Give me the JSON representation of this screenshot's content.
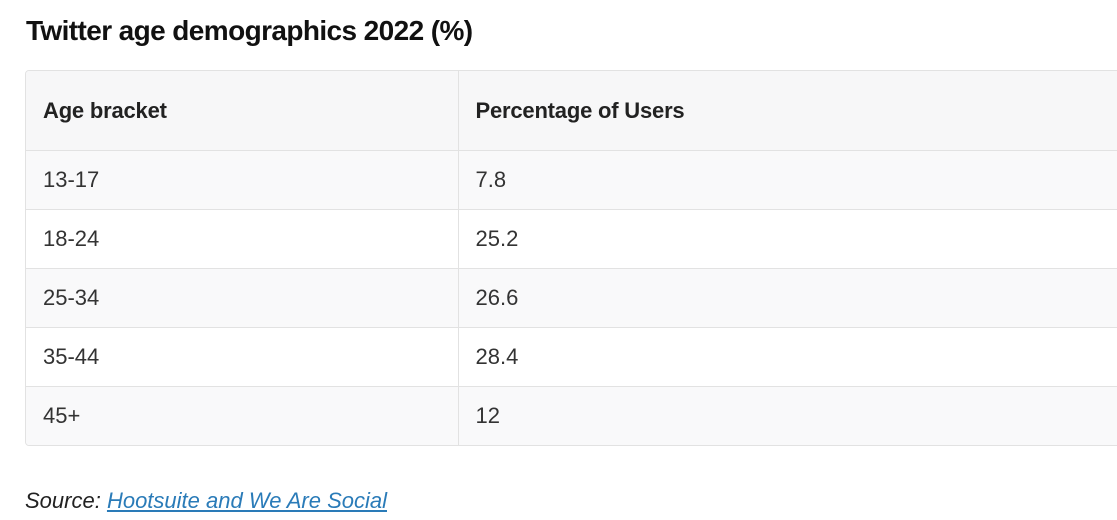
{
  "title": "Twitter age demographics 2022 (%)",
  "table": {
    "headers": [
      "Age bracket",
      "Percentage of Users"
    ],
    "rows": [
      [
        "13-17",
        "7.8"
      ],
      [
        "18-24",
        "25.2"
      ],
      [
        "25-34",
        "26.6"
      ],
      [
        "35-44",
        "28.4"
      ],
      [
        "45+",
        "12"
      ]
    ]
  },
  "source": {
    "label": "Source:",
    "link_text": "Hootsuite and We Are Social"
  },
  "colors": {
    "link": "#2a7bb8",
    "border": "#e2e2e2",
    "header_bg": "#f7f7f8"
  }
}
